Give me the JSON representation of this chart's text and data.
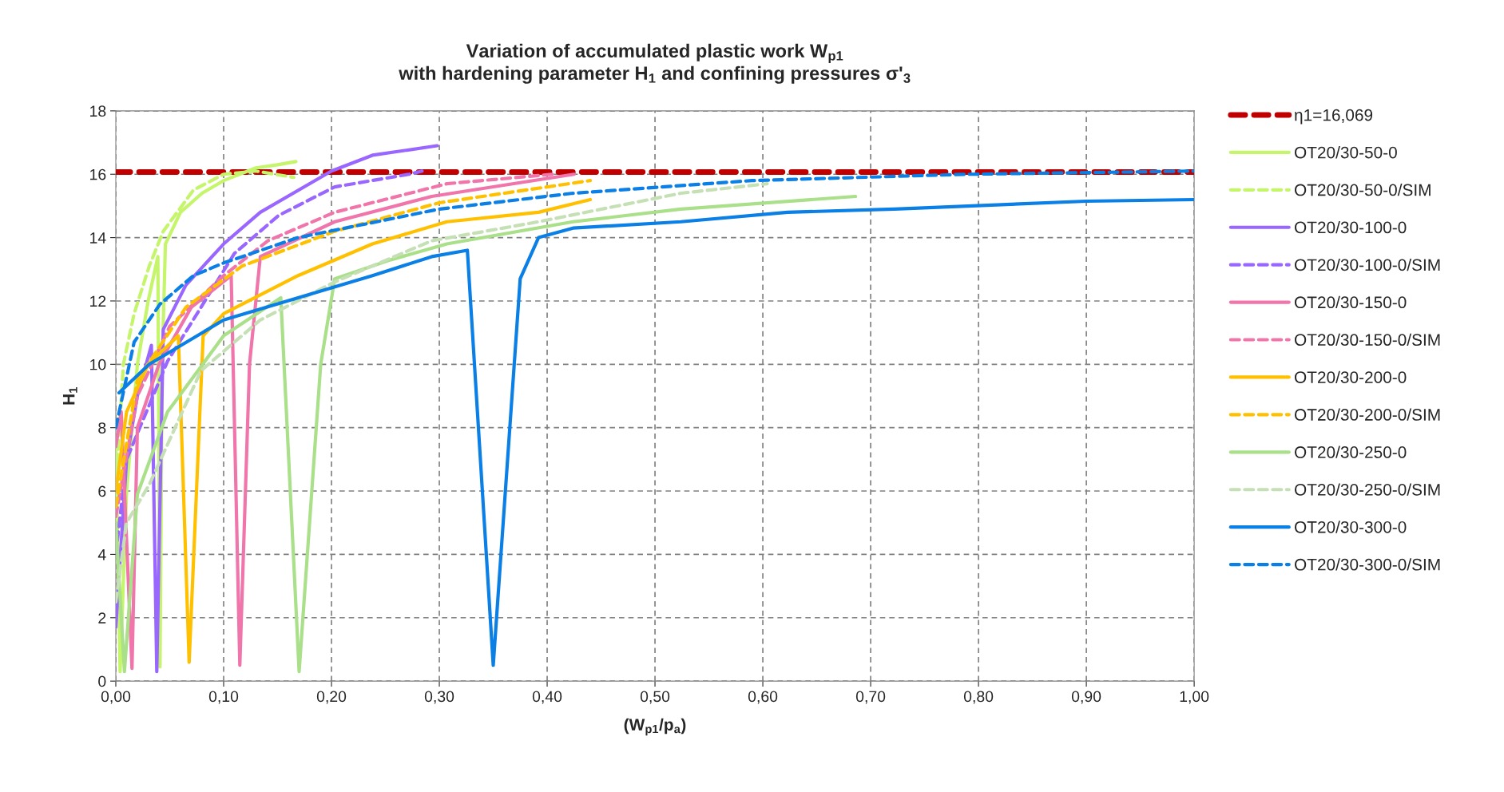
{
  "chart_data": {
    "type": "line",
    "title": "Variation of accumulated plastic work W$_{p1}$\nwith hardening parameter H$_{1}$ and confining pressures σ'$_{3}$",
    "xlabel": "(W$_{p1}$/p$_{a}$)",
    "ylabel": "H$_{1}$",
    "xlim": [
      0,
      1
    ],
    "ylim": [
      0,
      18
    ],
    "xticks": [
      {
        "value": 0,
        "label": "0,00"
      },
      {
        "value": 0.1,
        "label": "0,10"
      },
      {
        "value": 0.2,
        "label": "0,20"
      },
      {
        "value": 0.3,
        "label": "0,30"
      },
      {
        "value": 0.4,
        "label": "0,40"
      },
      {
        "value": 0.5,
        "label": "0,50"
      },
      {
        "value": 0.6,
        "label": "0,60"
      },
      {
        "value": 0.7,
        "label": "0,70"
      },
      {
        "value": 0.8,
        "label": "0,80"
      },
      {
        "value": 0.9,
        "label": "0,90"
      },
      {
        "value": 1,
        "label": "1,00"
      }
    ],
    "yticks": [
      0,
      2,
      4,
      6,
      8,
      10,
      12,
      14,
      16,
      18
    ],
    "grid": true,
    "legend": "right",
    "marker": "none",
    "series": [
      {
        "name": "η1=16,069",
        "color": "#c00000",
        "line_style": "dashed",
        "x": [
          0,
          1
        ],
        "values": [
          16.069,
          16.069
        ]
      },
      {
        "name": "OT20/30-50-0",
        "color": "#c5f56a",
        "line_style": "solid",
        "x": [
          0,
          0.004,
          0.01,
          0.02,
          0.03,
          0.039,
          0.041,
          0.043,
          0.046,
          0.06,
          0.08,
          0.1,
          0.13,
          0.15,
          0.167
        ],
        "values": [
          7.5,
          0.3,
          6,
          10,
          12,
          13.4,
          0.45,
          10,
          13.8,
          14.8,
          15.4,
          15.8,
          16.2,
          16.3,
          16.4
        ]
      },
      {
        "name": "OT20/30-50-0/SIM",
        "color": "#c5f56a",
        "line_style": "dashed",
        "x": [
          0,
          0.007,
          0.017,
          0.031,
          0.044,
          0.072,
          0.1,
          0.13,
          0.165
        ],
        "values": [
          6,
          10,
          11.6,
          13.1,
          14.2,
          15.5,
          16.0,
          16.1,
          15.9
        ]
      },
      {
        "name": "OT20/30-100-0",
        "color": "#9966ff",
        "line_style": "solid",
        "x": [
          0,
          0.01,
          0.02,
          0.033,
          0.038,
          0.044,
          0.065,
          0.1,
          0.134,
          0.2,
          0.238,
          0.298
        ],
        "values": [
          1.7,
          7,
          9,
          10.6,
          0.3,
          11.1,
          12.5,
          13.8,
          14.8,
          16.1,
          16.6,
          16.9
        ]
      },
      {
        "name": "OT20/30-100-0/SIM",
        "color": "#9966ff",
        "line_style": "dashed",
        "x": [
          0,
          0.01,
          0.048,
          0.11,
          0.151,
          0.203,
          0.272,
          0.284
        ],
        "values": [
          4,
          7,
          10.1,
          13.5,
          14.7,
          15.6,
          16.0,
          16.1
        ]
      },
      {
        "name": "OT20/30-150-0",
        "color": "#f075aa",
        "line_style": "solid",
        "x": [
          0,
          0.005,
          0.015,
          0.02,
          0.04,
          0.07,
          0.107,
          0.115,
          0.124,
          0.134,
          0.203,
          0.293,
          0.425
        ],
        "values": [
          7.4,
          8.5,
          0.4,
          8,
          10,
          11.8,
          12.8,
          0.5,
          10,
          13.4,
          14.5,
          15.3,
          16.0
        ]
      },
      {
        "name": "OT20/30-150-0/SIM",
        "color": "#f075aa",
        "line_style": "dashed",
        "x": [
          0,
          0.02,
          0.05,
          0.1,
          0.141,
          0.203,
          0.307,
          0.405
        ],
        "values": [
          5.2,
          9,
          11.2,
          12.8,
          13.9,
          14.8,
          15.7,
          16.0
        ]
      },
      {
        "name": "OT20/30-200-0",
        "color": "#ffc000",
        "line_style": "solid",
        "x": [
          0,
          0.01,
          0.03,
          0.058,
          0.068,
          0.081,
          0.1,
          0.169,
          0.238,
          0.307,
          0.392,
          0.44
        ],
        "values": [
          6,
          8.5,
          10,
          10.9,
          0.6,
          10.9,
          11.6,
          12.8,
          13.8,
          14.5,
          14.8,
          15.2
        ]
      },
      {
        "name": "OT20/30-200-0/SIM",
        "color": "#ffc000",
        "line_style": "dashed",
        "x": [
          0,
          0.02,
          0.065,
          0.117,
          0.203,
          0.3,
          0.44
        ],
        "values": [
          5.5,
          9.5,
          11.8,
          13.1,
          14.2,
          15.1,
          15.8
        ]
      },
      {
        "name": "OT20/30-250-0",
        "color": "#a9e089",
        "line_style": "solid",
        "x": [
          0,
          0.008,
          0.02,
          0.048,
          0.1,
          0.153,
          0.17,
          0.19,
          0.203,
          0.255,
          0.307,
          0.424,
          0.524,
          0.686
        ],
        "values": [
          5,
          0.3,
          5.9,
          8.5,
          10.9,
          12.1,
          0.3,
          10,
          12.7,
          13.3,
          13.8,
          14.5,
          14.9,
          15.3
        ]
      },
      {
        "name": "OT20/30-250-0/SIM",
        "color": "#c5e0b4",
        "line_style": "dashed",
        "x": [
          0,
          0.01,
          0.031,
          0.079,
          0.134,
          0.203,
          0.293,
          0.392,
          0.524,
          0.604
        ],
        "values": [
          2.5,
          5,
          6.2,
          9.8,
          11.4,
          12.6,
          13.9,
          14.5,
          15.4,
          15.7
        ]
      },
      {
        "name": "OT20/30-300-0",
        "color": "#0a7fe6",
        "line_style": "solid",
        "x": [
          0.003,
          0.031,
          0.1,
          0.169,
          0.238,
          0.293,
          0.326,
          0.35,
          0.375,
          0.392,
          0.424,
          0.524,
          0.623,
          0.722,
          0.9,
          1.0
        ],
        "values": [
          9.1,
          10,
          11.4,
          12.1,
          12.8,
          13.4,
          13.6,
          0.5,
          12.7,
          14.0,
          14.3,
          14.5,
          14.8,
          14.9,
          15.15,
          15.2
        ]
      },
      {
        "name": "OT20/30-300-0/SIM",
        "color": "#0a7fe6",
        "line_style": "dashed",
        "x": [
          0,
          0.005,
          0.017,
          0.041,
          0.072,
          0.1,
          0.169,
          0.3,
          0.424,
          0.59,
          0.79,
          1.0
        ],
        "values": [
          8,
          8.8,
          10.7,
          11.9,
          12.8,
          13.2,
          14.0,
          14.9,
          15.4,
          15.8,
          16.0,
          16.1
        ]
      }
    ]
  }
}
